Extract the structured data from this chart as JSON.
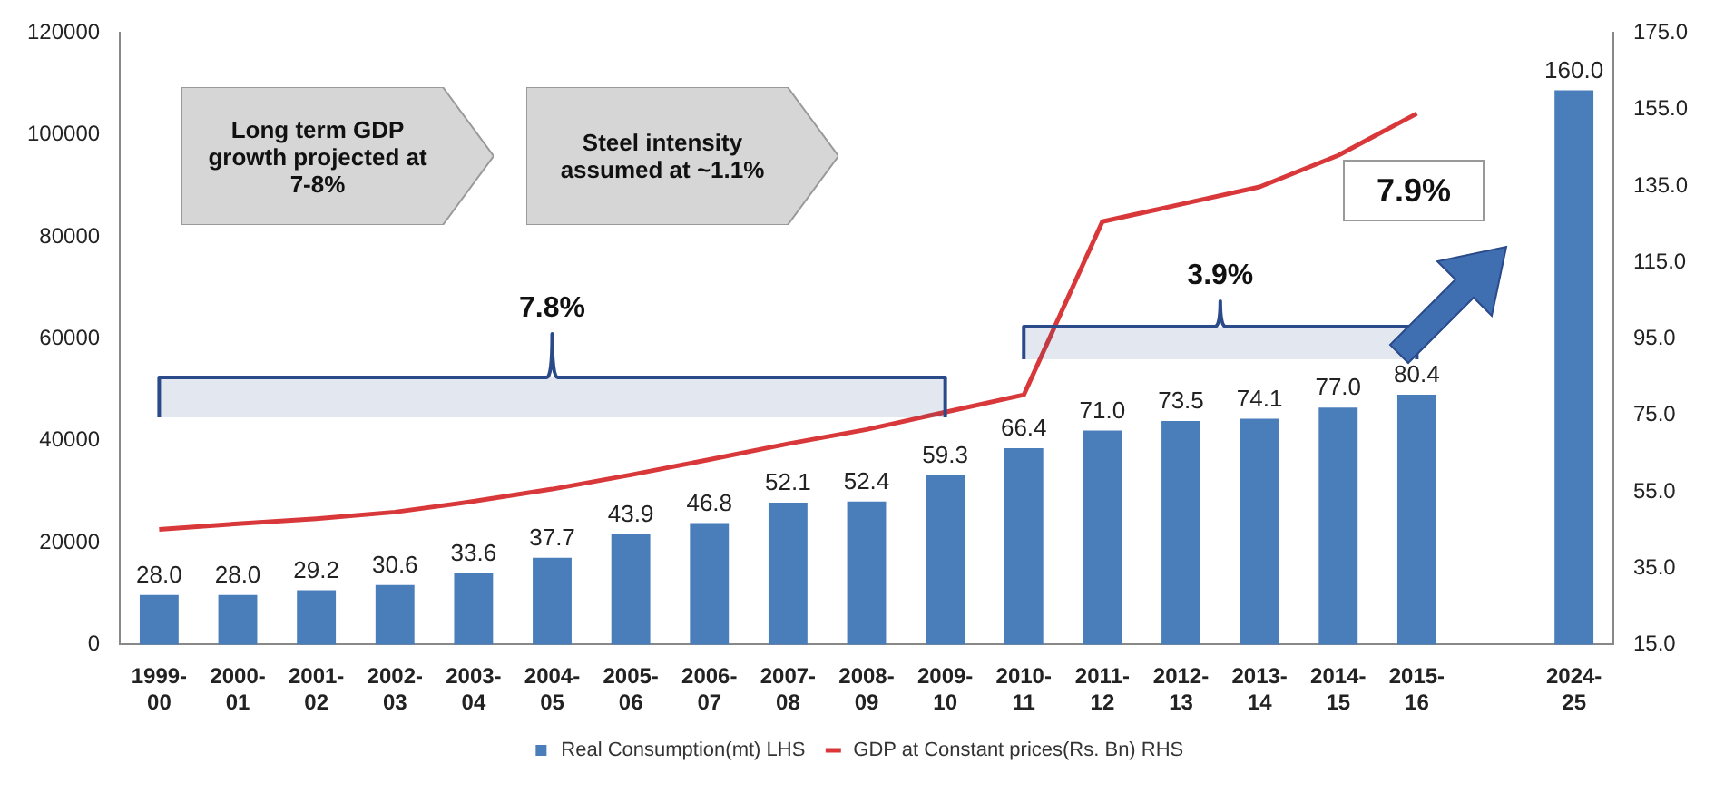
{
  "chart_data": {
    "type": "bar",
    "categories": [
      "1999-00",
      "2000-01",
      "2001-02",
      "2002-03",
      "2003-04",
      "2004-05",
      "2005-06",
      "2006-07",
      "2007-08",
      "2008-09",
      "2009-10",
      "2010-11",
      "2011-12",
      "2012-13",
      "2013-14",
      "2014-15",
      "2015-16",
      null,
      "2024-25"
    ],
    "series": [
      {
        "name": "Real Consumption(mt) LHS",
        "axis": "y2",
        "color": "#4a7ebb",
        "values": [
          28.0,
          28.0,
          29.2,
          30.6,
          33.6,
          37.7,
          43.9,
          46.8,
          52.1,
          52.4,
          59.3,
          66.4,
          71.0,
          73.5,
          74.1,
          77.0,
          80.4,
          null,
          160.0
        ],
        "value_labels": [
          "28.0",
          "28.0",
          "29.2",
          "30.6",
          "33.6",
          "37.7",
          "43.9",
          "46.8",
          "52.1",
          "52.4",
          "59.3",
          "66.4",
          "71.0",
          "73.5",
          "74.1",
          "77.0",
          "80.4",
          null,
          "160.0"
        ]
      },
      {
        "name": "GDP at Constant prices(Rs. Bn) RHS",
        "type": "line",
        "axis": "y",
        "color": "#d9383a",
        "values": [
          22600,
          23700,
          24700,
          26000,
          28100,
          30500,
          33300,
          36300,
          39400,
          42200,
          45600,
          49000,
          83000,
          86400,
          89800,
          96000,
          104200,
          null,
          null
        ]
      }
    ],
    "ylim": [
      0,
      120000
    ],
    "yticks": [
      0,
      20000,
      40000,
      60000,
      80000,
      100000,
      120000
    ],
    "y2lim": [
      15,
      175
    ],
    "y2ticks": [
      {
        "value": 15,
        "label": "15.0"
      },
      {
        "value": 35,
        "label": "35.0"
      },
      {
        "value": 55,
        "label": "55.0"
      },
      {
        "value": 75,
        "label": "75.0"
      },
      {
        "value": 95,
        "label": "95.0"
      },
      {
        "value": 115,
        "label": "115.0"
      },
      {
        "value": 135,
        "label": "135.0"
      },
      {
        "value": 155,
        "label": "155.0"
      },
      {
        "value": 175,
        "label": "175.0"
      }
    ],
    "grid": false,
    "legend": "bottom",
    "marker": "none",
    "bands": [
      {
        "axis": "x",
        "from": "1999-00",
        "to": "2009-10",
        "label": "7.8%",
        "color": "#2b4a8a"
      },
      {
        "axis": "x",
        "from": "2010-11",
        "to": "2015-16",
        "label": "3.9%",
        "color": "#2b4a8a"
      }
    ],
    "annotations": [
      "Long term GDP growth projected at 7-8%",
      "Steel intensity assumed at ~1.1%",
      "7.9%"
    ]
  }
}
